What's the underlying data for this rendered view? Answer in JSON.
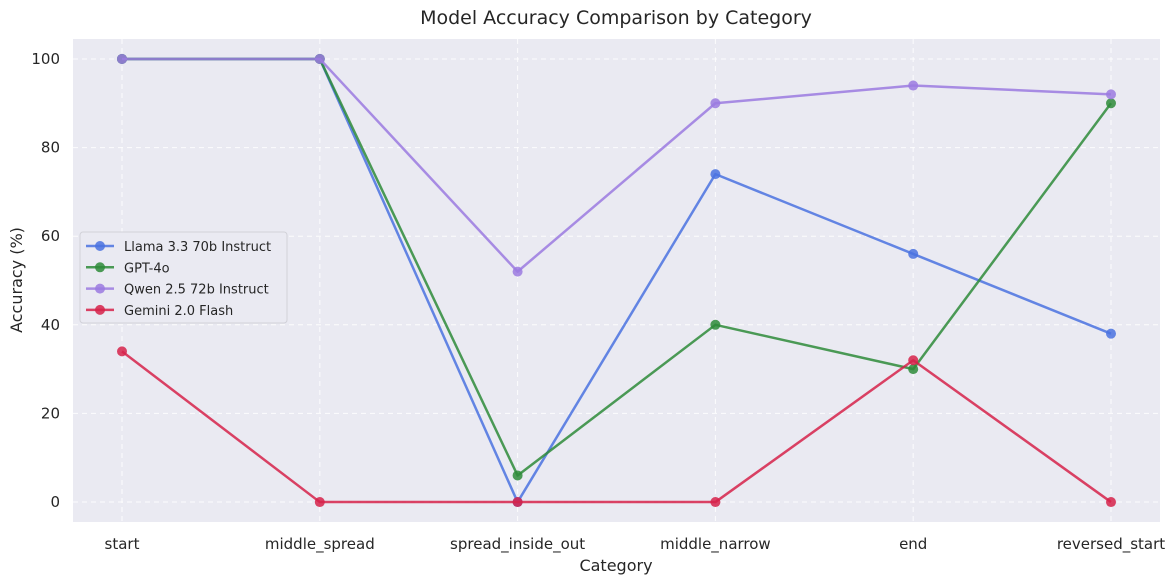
{
  "chart_data": {
    "type": "line",
    "title": "Model Accuracy Comparison by Category",
    "xlabel": "Category",
    "ylabel": "Accuracy (%)",
    "categories": [
      "start",
      "middle_spread",
      "spread_inside_out",
      "middle_narrow",
      "end",
      "reversed_start"
    ],
    "ylim": [
      -4.5,
      104.5
    ],
    "yticks": [
      0,
      20,
      40,
      60,
      80,
      100
    ],
    "grid": true,
    "legend_position": "center-left",
    "series": [
      {
        "name": "Llama 3.3 70b Instruct",
        "color": "#4a72e0",
        "values": [
          100,
          100,
          0,
          74,
          56,
          38
        ]
      },
      {
        "name": "GPT-4o",
        "color": "#2e8b3a",
        "values": [
          100,
          100,
          6,
          40,
          30,
          90
        ]
      },
      {
        "name": "Qwen 2.5 72b Instruct",
        "color": "#9b7ae0",
        "values": [
          100,
          100,
          52,
          90,
          94,
          92
        ]
      },
      {
        "name": "Gemini 2.0 Flash",
        "color": "#d6224a",
        "values": [
          34,
          0,
          0,
          0,
          32,
          0
        ]
      }
    ]
  }
}
